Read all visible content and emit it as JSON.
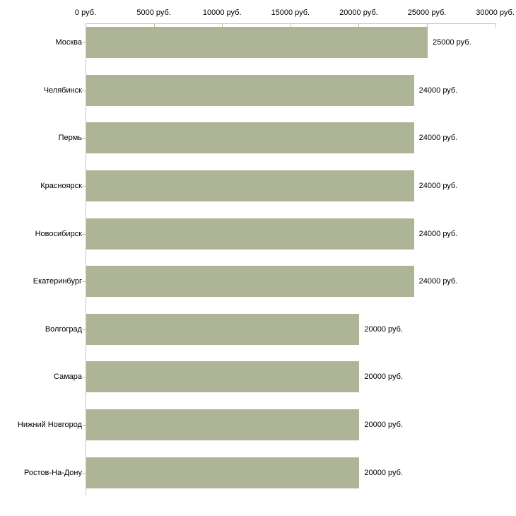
{
  "chart_data": {
    "type": "bar",
    "orientation": "horizontal",
    "title": "",
    "xlabel": "",
    "ylabel": "",
    "categories": [
      "Москва",
      "Челябинск",
      "Пермь",
      "Красноярск",
      "Новосибирск",
      "Екатеринбург",
      "Волгоград",
      "Самара",
      "Нижний Новгород",
      "Ростов-На-Дону"
    ],
    "values": [
      25000,
      24000,
      24000,
      24000,
      24000,
      24000,
      20000,
      20000,
      20000,
      20000
    ],
    "value_labels": [
      "25000 руб.",
      "24000 руб.",
      "24000 руб.",
      "24000 руб.",
      "24000 руб.",
      "24000 руб.",
      "20000 руб.",
      "20000 руб.",
      "20000 руб.",
      "20000 руб."
    ],
    "x_axis": {
      "position": "top",
      "min": 0,
      "max": 30000,
      "ticks": [
        0,
        5000,
        10000,
        15000,
        20000,
        25000,
        30000
      ],
      "tick_labels": [
        "0 руб.",
        "5000 руб.",
        "10000 руб.",
        "15000 руб.",
        "20000 руб.",
        "25000 руб.",
        "30000 руб."
      ]
    },
    "grid": false,
    "legend": false,
    "colors": {
      "bar": "#aeb496",
      "axis_line": "#c6c6c6",
      "tick_mark": "#cdbc81",
      "text": "#000000",
      "background": "#ffffff"
    }
  }
}
